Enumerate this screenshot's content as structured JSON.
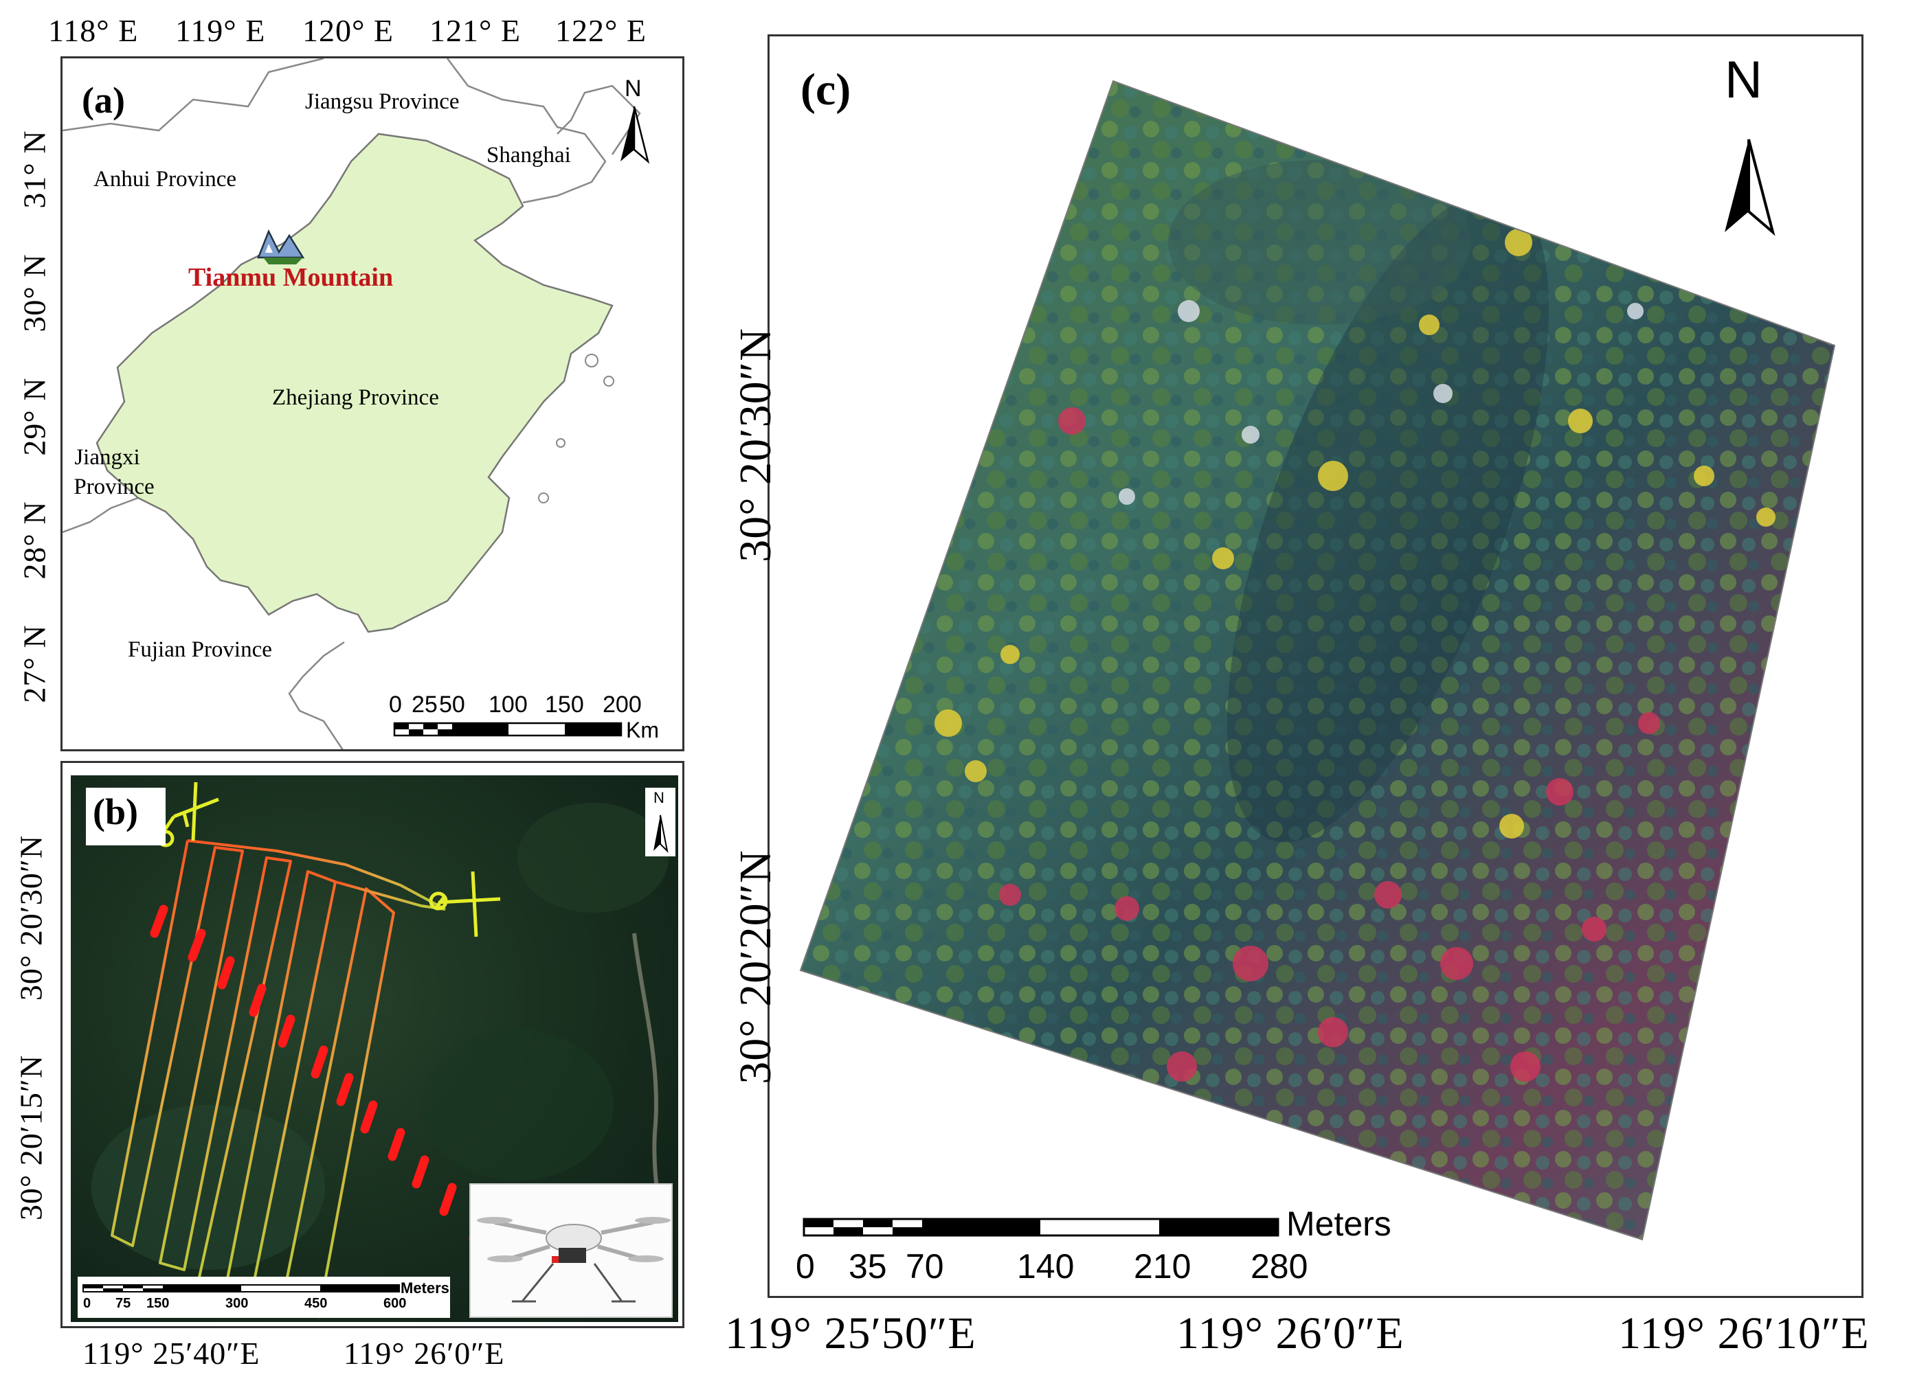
{
  "panel_a": {
    "label": "(a)",
    "top_axis": [
      "118° E",
      "119° E",
      "120° E",
      "121° E",
      "122° E"
    ],
    "left_axis": [
      "31° N",
      "30° N",
      "29° N",
      "28° N",
      "27° N"
    ],
    "places": {
      "jiangsu": "Jiangsu Province",
      "shanghai": "Shanghai",
      "anhui": "Anhui Province",
      "tianmu": "Tianmu Mountain",
      "zhejiang": "Zhejiang Province",
      "jiangxi_line1": "Jiangxi",
      "jiangxi_line2": "Province",
      "fujian": "Fujian Province"
    },
    "north": "N",
    "scale_ticks": [
      "0",
      "25",
      "50",
      "100",
      "150",
      "200"
    ],
    "scale_unit": "Km",
    "colors": {
      "zhejiang_fill": "#e2f4c7",
      "highlight_text": "#c0171c"
    }
  },
  "panel_b": {
    "label": "(b)",
    "bottom_axis": [
      "119° 25′40″E",
      "119° 26′0″E"
    ],
    "left_axis": [
      "30° 20′30″N",
      "30° 20′15″N"
    ],
    "north": "N",
    "scale_ticks": [
      "0",
      "75",
      "150",
      "300",
      "450",
      "600"
    ],
    "scale_unit": "Meters"
  },
  "panel_c": {
    "label": "(c)",
    "bottom_axis": [
      "119° 25′50″E",
      "119° 26′0″E",
      "119° 26′10″E"
    ],
    "left_axis": [
      "30° 20′30″N",
      "30° 20′20″N"
    ],
    "north": "N",
    "scale_ticks": [
      "0",
      "35",
      "70",
      "140",
      "210",
      "280"
    ],
    "scale_unit": "Meters"
  }
}
